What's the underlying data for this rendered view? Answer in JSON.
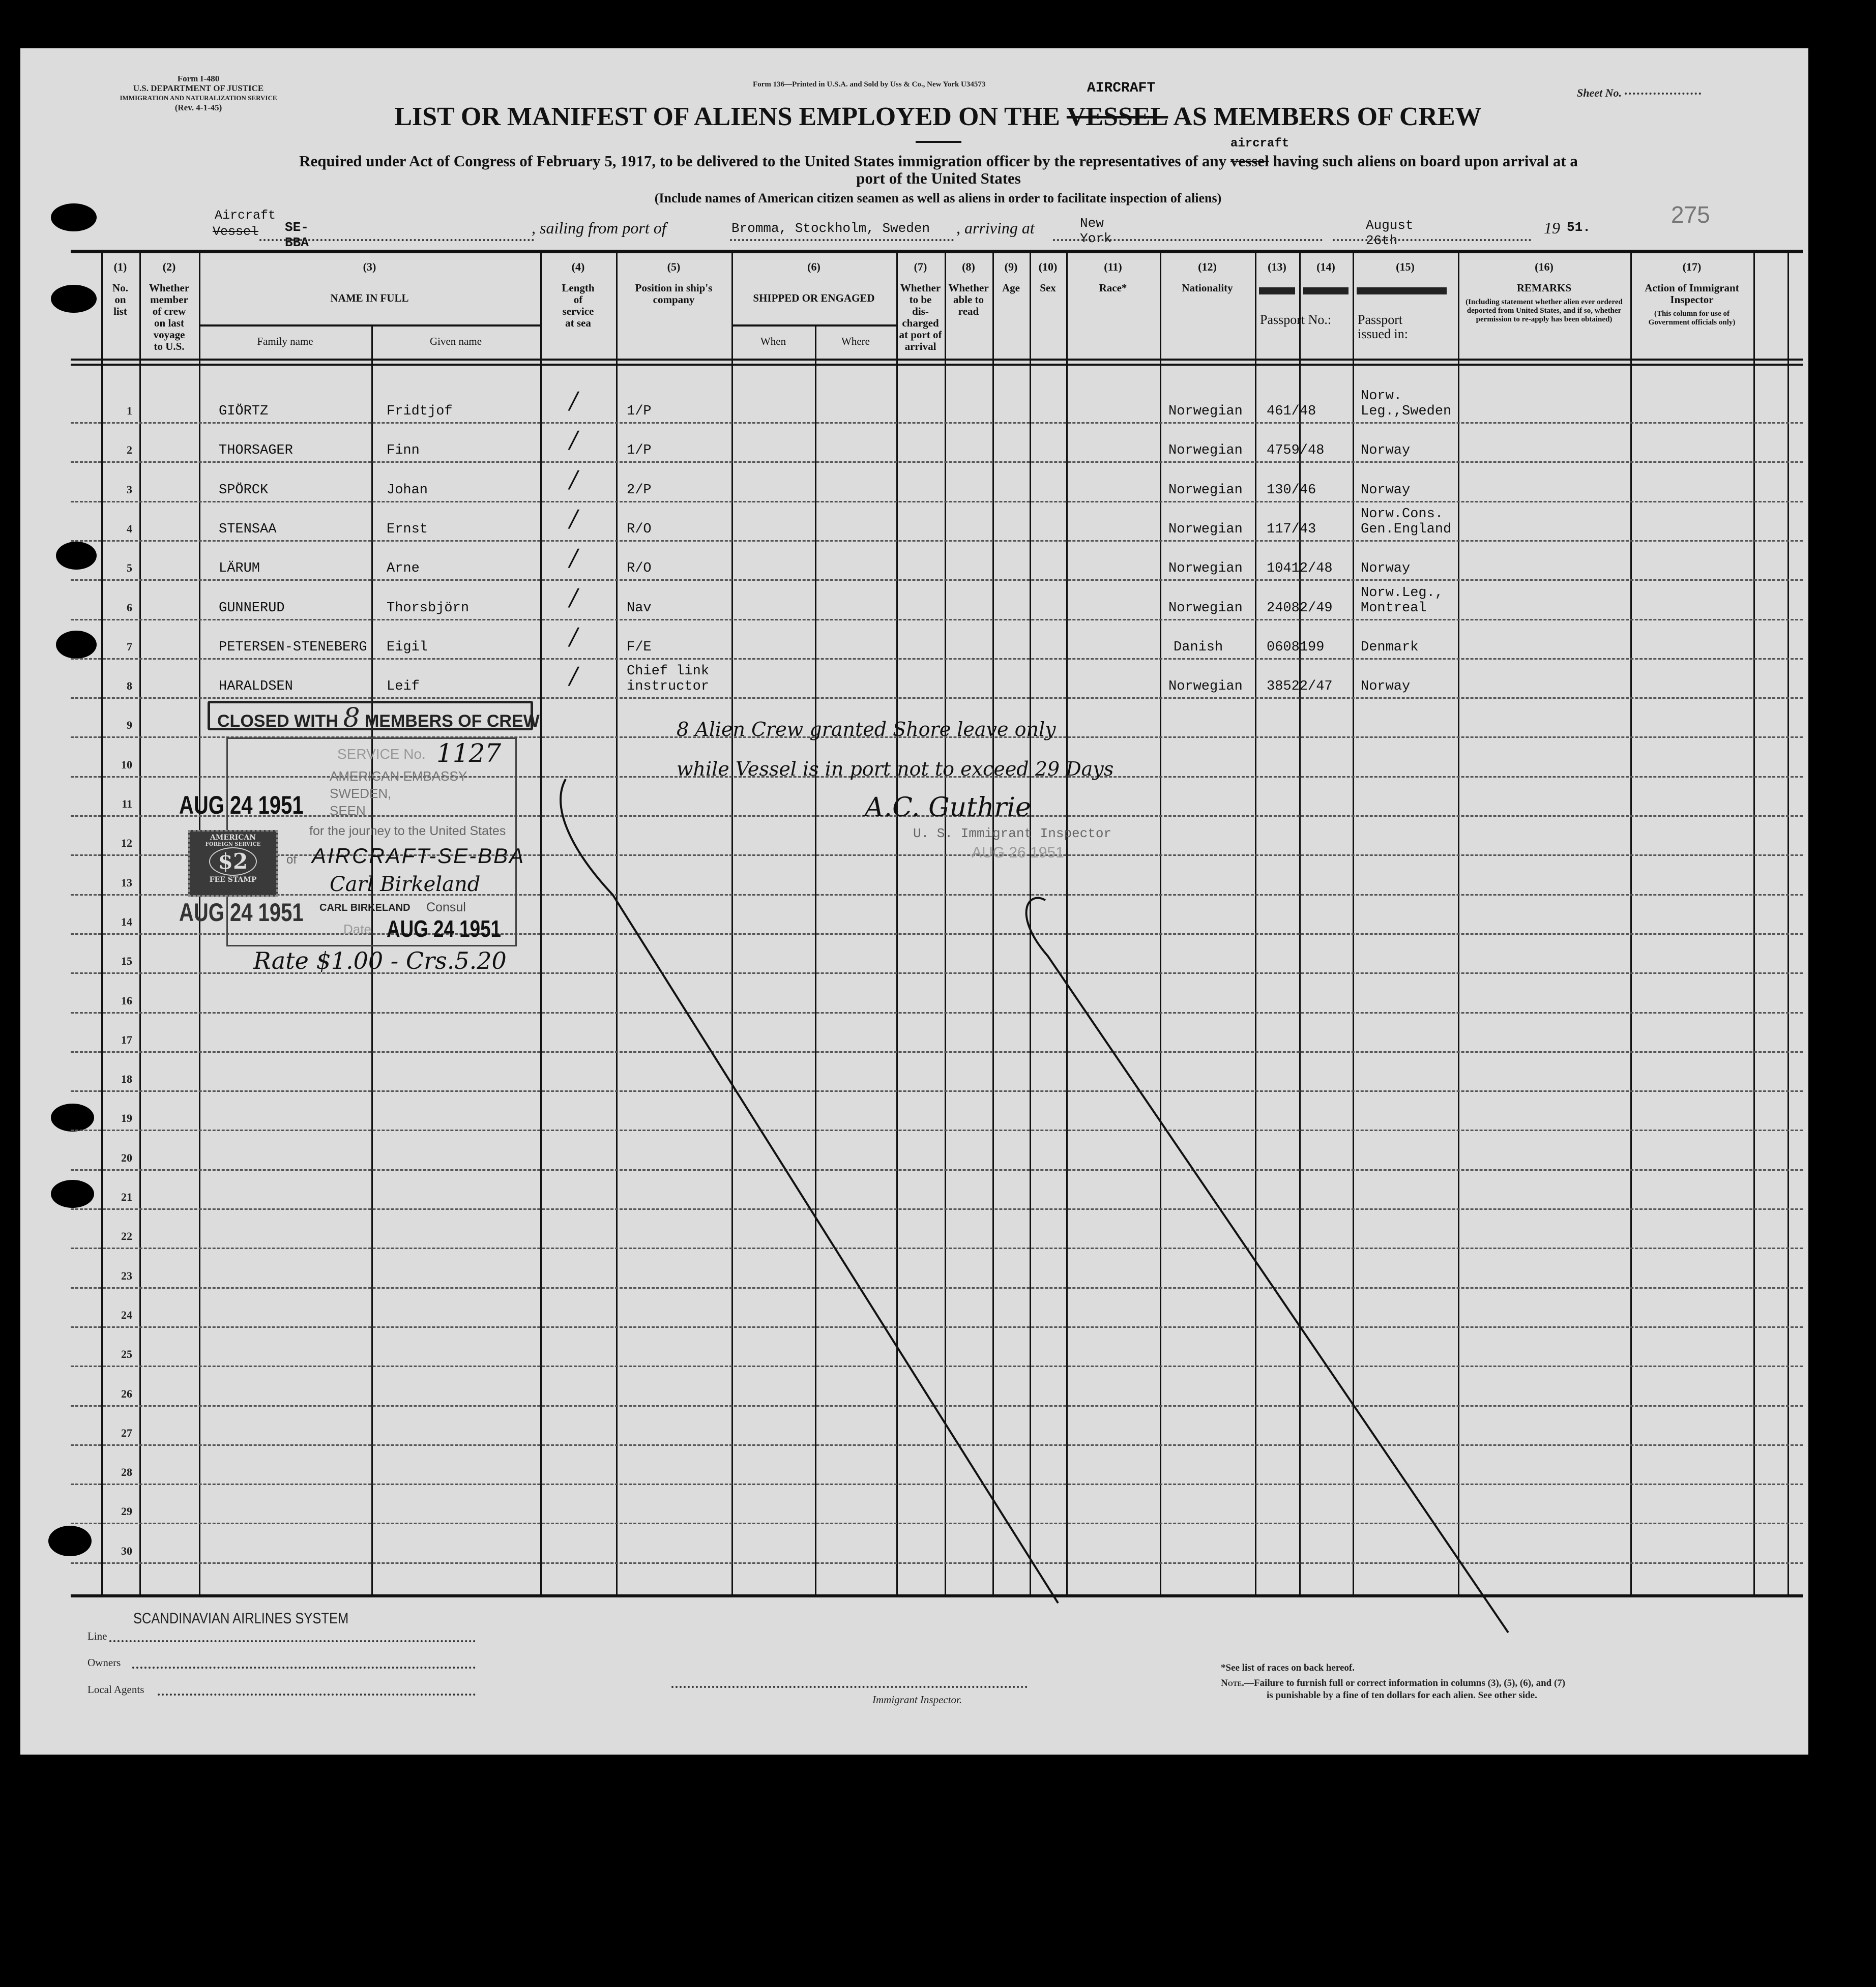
{
  "form_header": {
    "form_no": "Form I-480",
    "department": "U.S. DEPARTMENT OF JUSTICE",
    "service": "IMMIGRATION AND NATURALIZATION SERVICE",
    "revision": "(Rev. 4-1-45)",
    "printer_note": "Form 136—Printed in U.S.A. and Sold by Uss & Co., New York U34573",
    "sheet_label": "Sheet No.",
    "sheet_number": "275"
  },
  "title": {
    "part1": "LIST OR MANIFEST OF ALIENS EMPLOYED ON THE",
    "struck_word": "VESSEL",
    "insert_word": "AIRCRAFT",
    "part2": "AS MEMBERS OF CREW"
  },
  "subtitle": {
    "part1": "Required under Act of Congress of February 5, 1917, to be delivered to the United States immigration officer by the representatives of any",
    "struck_word": "vessel",
    "insert_word": "aircraft",
    "part2": "having such aliens on board upon arrival at a",
    "line2": "port of the United States",
    "note": "(Include names of American citizen seamen as well as aliens in order to facilitate inspection of aliens)"
  },
  "voyage": {
    "craft_label_insert": "Aircraft",
    "craft_label_struck": "Vessel",
    "craft_id": "SE-BBA",
    "sailing_label": ", sailing from port of",
    "port": "Bromma, Stockholm, Sweden",
    "arriving_label": ", arriving at",
    "destination": "New York",
    "date": "August 26th",
    "year_prefix": "19",
    "year_suffix": "51."
  },
  "table": {
    "headers": [
      {
        "num": "(1)",
        "label": "No.\non\nlist"
      },
      {
        "num": "(2)",
        "label": "Whether\nmember\nof crew\non last\nvoyage\nto U.S."
      },
      {
        "num": "(3)",
        "label": "NAME IN FULL",
        "sub": [
          "Family name",
          "Given name"
        ]
      },
      {
        "num": "(4)",
        "label": "Length\nof\nservice\nat sea"
      },
      {
        "num": "(5)",
        "label": "Position in ship's\ncompany"
      },
      {
        "num": "(6)",
        "label": "SHIPPED OR ENGAGED",
        "sub": [
          "When",
          "Where"
        ]
      },
      {
        "num": "(7)",
        "label": "Whether\nto be\ndis-\ncharged\nat port of\narrival"
      },
      {
        "num": "(8)",
        "label": "Whether\nable to\nread"
      },
      {
        "num": "(9)",
        "label": "Age"
      },
      {
        "num": "(10)",
        "label": "Sex"
      },
      {
        "num": "(11)",
        "label": "Race*"
      },
      {
        "num": "(12)",
        "label": "Nationality"
      },
      {
        "num": "(13)",
        "label": "Passport No.:"
      },
      {
        "num": "(14)",
        "label": ""
      },
      {
        "num": "(15)",
        "label": "Passport\nissued in:"
      },
      {
        "num": "(16)",
        "label": "REMARKS",
        "small": "(Including statement whether alien ever ordered deported from United States, and if so, whether permission to re-apply has been obtained)"
      },
      {
        "num": "(17)",
        "label": "Action of Immigrant\nInspector",
        "small": "(This column for use of Government officials only)"
      }
    ],
    "row_numbers": [
      "1",
      "2",
      "3",
      "4",
      "5",
      "6",
      "7",
      "8",
      "9",
      "10",
      "11",
      "12",
      "13",
      "14",
      "15",
      "16",
      "17",
      "18",
      "19",
      "20",
      "21",
      "22",
      "23",
      "24",
      "25",
      "26",
      "27",
      "28",
      "29",
      "30"
    ],
    "rows": [
      {
        "family": "GIÖRTZ",
        "given": "Fridtjof",
        "service": "/",
        "position": "1/P",
        "nationality": "Norwegian",
        "passport": "461/48",
        "issued": "Norw.\nLeg.,Sweden"
      },
      {
        "family": "THORSAGER",
        "given": "Finn",
        "service": "/",
        "position": "1/P",
        "nationality": "Norwegian",
        "passport": "4759/48",
        "issued": "Norway"
      },
      {
        "family": "SPÖRCK",
        "given": "Johan",
        "service": "/",
        "position": "2/P",
        "nationality": "Norwegian",
        "passport": "130/46",
        "issued": "Norway"
      },
      {
        "family": "STENSAA",
        "given": "Ernst",
        "service": "/",
        "position": "R/O",
        "nationality": "Norwegian",
        "passport": "117/43",
        "issued": "Norw.Cons.\nGen.England"
      },
      {
        "family": "LÄRUM",
        "given": "Arne",
        "service": "/",
        "position": "R/O",
        "nationality": "Norwegian",
        "passport": "10412/48",
        "issued": "Norway"
      },
      {
        "family": "GUNNERUD",
        "given": "Thorsbjörn",
        "service": "/",
        "position": "Nav",
        "nationality": "Norwegian",
        "passport": "24082/49",
        "issued": "Norw.Leg.,\nMontreal"
      },
      {
        "family": "PETERSEN-STENEBERG",
        "given": "Eigil",
        "service": "/",
        "position": "F/E",
        "nationality": "Danish",
        "passport": "0608199",
        "issued": "Denmark"
      },
      {
        "family": "HARALDSEN",
        "given": "Leif",
        "service": "/",
        "position": "Chief link\ninstructor",
        "nationality": "Norwegian",
        "passport": "38522/47",
        "issued": "Norway"
      }
    ]
  },
  "stamps": {
    "closed": {
      "prefix": "CLOSED WITH",
      "count": "8",
      "suffix": "MEMBERS OF CREW"
    },
    "consular": {
      "service_label": "SERVICE No.",
      "service_no": "1127",
      "embassy": "AMERICAN EMBASSY",
      "country": "SWEDEN,",
      "seen": "SEEN",
      "journey": "for the journey to the United States",
      "of_label": "of",
      "craft": "AIRCRAFT-SE-BBA",
      "consul_signature": "Carl Birkeland",
      "consul_name": "CARL BIRKELAND",
      "consul_title": "Consul",
      "date_label": "Date",
      "date": "AUG 24 1951"
    },
    "date_stamp_1": "AUG 24 1951",
    "date_stamp_2": "AUG 24 1951",
    "fee_stamp": {
      "line1": "AMERICAN",
      "line2": "FOREIGN SERVICE",
      "value": "$2",
      "line3": "FEE STAMP"
    },
    "rate": "Rate $1.00 - Crs.5.20"
  },
  "inspector_note": {
    "line1": "8 Alien Crew granted Shore leave only",
    "line2": "while Vessel is in port not to exceed 29 Days",
    "signature": "A.C. Guthrie",
    "title": "U. S. Immigrant Inspector",
    "date": "AUG 26 1951"
  },
  "footer": {
    "airline": "SCANDINAVIAN AIRLINES SYSTEM",
    "line_label": "Line",
    "owners_label": "Owners",
    "agents_label": "Local Agents",
    "inspector_label": "Immigrant Inspector.",
    "races_note": "*See list of races on back hereof.",
    "note_label": "Note.",
    "note_text1": "—Failure to furnish full or correct information in columns (3), (5), (6), and (7)",
    "note_text2": "is punishable by a fine of ten dollars for each alien.  See other side."
  }
}
